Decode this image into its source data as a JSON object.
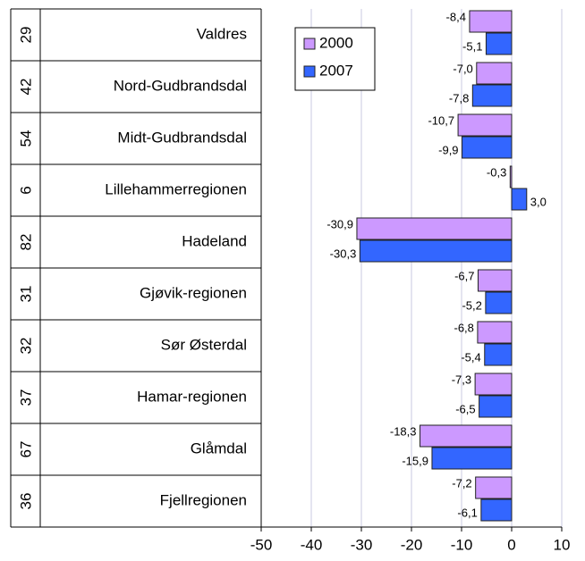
{
  "chart_data": {
    "type": "bar",
    "orientation": "horizontal",
    "categories": [
      "Valdres",
      "Nord-Gudbrandsdal",
      "Midt-Gudbrandsdal",
      "Lillehammerregionen",
      "Hadeland",
      "Gjøvik-regionen",
      "Sør Østerdal",
      "Hamar-regionen",
      "Glåmdal",
      "Fjellregionen"
    ],
    "codes": [
      "29",
      "42",
      "54",
      "6",
      "82",
      "31",
      "32",
      "37",
      "67",
      "36"
    ],
    "series": [
      {
        "name": "2000",
        "color": "#cc99ff",
        "values": [
          -8.4,
          -7.0,
          -10.7,
          -0.3,
          -30.9,
          -6.7,
          -6.8,
          -7.3,
          -18.3,
          -7.2
        ],
        "value_labels": [
          "-8,4",
          "-7,0",
          "-10,7",
          "-0,3",
          "-30,9",
          "-6,7",
          "-6,8",
          "-7,3",
          "-18,3",
          "-7,2"
        ]
      },
      {
        "name": "2007",
        "color": "#3366ff",
        "values": [
          -5.1,
          -7.8,
          -9.9,
          3.0,
          -30.3,
          -5.2,
          -5.4,
          -6.5,
          -15.9,
          -6.1
        ],
        "value_labels": [
          "-5,1",
          "-7,8",
          "-9,9",
          "3,0",
          "-30,3",
          "-5,2",
          "-5,4",
          "-6,5",
          "-15,9",
          "-6,1"
        ]
      }
    ],
    "xlim": [
      -50,
      10
    ],
    "xticks": [
      -50,
      -40,
      -30,
      -20,
      -10,
      0,
      10
    ],
    "grid": true,
    "legend": "top-left"
  }
}
